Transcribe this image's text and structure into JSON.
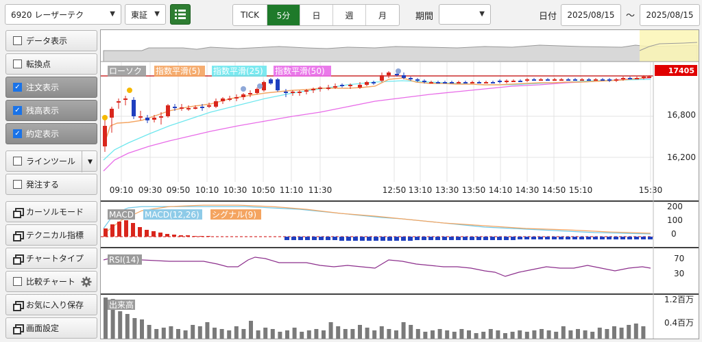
{
  "topbar": {
    "symbol": "6920 レーザーテク",
    "exchange": "東証",
    "periods": [
      "TICK",
      "5分",
      "日",
      "週",
      "月"
    ],
    "active_period": "5分",
    "range_label": "期間",
    "range_value": "",
    "date_label": "日付",
    "date_from": "2025/08/15",
    "tilde": "〜",
    "date_to": "2025/08/15"
  },
  "sidebar": {
    "items": [
      {
        "label": "データ表示",
        "checked": false,
        "active": false
      },
      {
        "label": "転換点",
        "checked": false,
        "active": false
      },
      {
        "label": "注文表示",
        "checked": true,
        "active": true
      },
      {
        "label": "残高表示",
        "checked": true,
        "active": true
      },
      {
        "label": "約定表示",
        "checked": true,
        "active": true
      },
      {
        "label": "ラインツール",
        "checked": false,
        "active": false
      },
      {
        "label": "発注する",
        "checked": false,
        "active": false
      },
      {
        "label": "カーソルモード",
        "window": true
      },
      {
        "label": "テクニカル指標",
        "window": true
      },
      {
        "label": "チャートタイプ",
        "window": true
      },
      {
        "label": "比較チャート",
        "checked": false,
        "active": false
      },
      {
        "label": "お気に入り保存",
        "window": true
      },
      {
        "label": "画面設定",
        "window": true
      }
    ]
  },
  "chart": {
    "legend": {
      "candle": "ローソク",
      "ema5": "指数平滑(5)",
      "ema25": "指数平滑(25)",
      "ema50": "指数平滑(50)"
    },
    "colors": {
      "ema5": "#f4a460",
      "ema25": "#6ee7ee",
      "ema50": "#e86be8",
      "up": "#d9261c",
      "down": "#1f3fbf",
      "price_line": "#c00000"
    },
    "current_price": "17405",
    "price_ticks": [
      "16,800",
      "16,200"
    ],
    "time_ticks": [
      "09:10",
      "09:30",
      "09:50",
      "10:10",
      "10:30",
      "10:50",
      "11:10",
      "11:30",
      "12:50",
      "13:10",
      "13:30",
      "13:50",
      "14:10",
      "14:30",
      "14:50",
      "15:10",
      "15:30"
    ],
    "macd": {
      "label": "MACD",
      "line_label": "MACD(12,26)",
      "signal_label": "シグナル(9)",
      "ticks": [
        "200",
        "100",
        "0"
      ]
    },
    "rsi": {
      "label": "RSI(14)",
      "ticks": [
        "70",
        "30"
      ]
    },
    "volume": {
      "label": "出来高",
      "ticks": [
        "1.2百万",
        "0.4百万"
      ]
    }
  }
}
